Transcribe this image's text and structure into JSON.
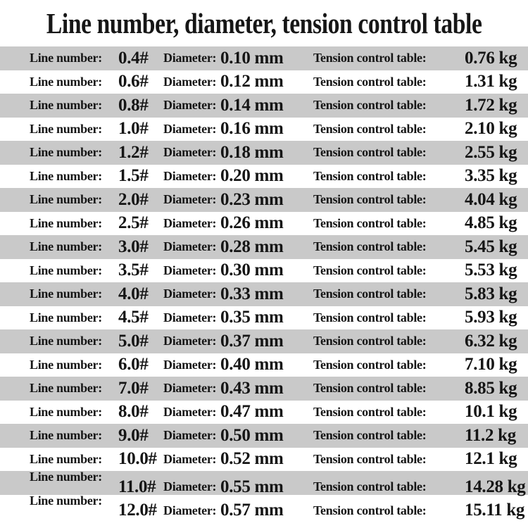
{
  "title": "Line number, diameter, tension control table",
  "labels": {
    "line": "Line number:",
    "diameter": "Diameter:",
    "tension": "Tension control table:"
  },
  "colors": {
    "row_alt": "#c9c9c9",
    "row_base": "#ffffff",
    "text": "#151515",
    "background": "#ffffff"
  },
  "chart_data": {
    "type": "table",
    "title": "Line number, diameter, tension control table",
    "columns": [
      "Line number",
      "Diameter",
      "Tension control table"
    ],
    "rows": [
      {
        "line": "0.4#",
        "diameter": "0.10 mm",
        "tension": "0.76 kg"
      },
      {
        "line": "0.6#",
        "diameter": "0.12 mm",
        "tension": "1.31 kg"
      },
      {
        "line": "0.8#",
        "diameter": "0.14 mm",
        "tension": "1.72 kg"
      },
      {
        "line": "1.0#",
        "diameter": "0.16 mm",
        "tension": "2.10 kg"
      },
      {
        "line": "1.2#",
        "diameter": "0.18 mm",
        "tension": "2.55 kg"
      },
      {
        "line": "1.5#",
        "diameter": "0.20 mm",
        "tension": "3.35 kg"
      },
      {
        "line": "2.0#",
        "diameter": "0.23 mm",
        "tension": "4.04 kg"
      },
      {
        "line": "2.5#",
        "diameter": "0.26 mm",
        "tension": "4.85 kg"
      },
      {
        "line": "3.0#",
        "diameter": "0.28 mm",
        "tension": "5.45 kg"
      },
      {
        "line": "3.5#",
        "diameter": "0.30 mm",
        "tension": "5.53 kg"
      },
      {
        "line": "4.0#",
        "diameter": "0.33 mm",
        "tension": "5.83 kg"
      },
      {
        "line": "4.5#",
        "diameter": "0.35 mm",
        "tension": "5.93 kg"
      },
      {
        "line": "5.0#",
        "diameter": "0.37 mm",
        "tension": "6.32 kg"
      },
      {
        "line": "6.0#",
        "diameter": "0.40 mm",
        "tension": "7.10 kg"
      },
      {
        "line": "7.0#",
        "diameter": "0.43 mm",
        "tension": "8.85 kg"
      },
      {
        "line": "8.0#",
        "diameter": "0.47 mm",
        "tension": "10.1 kg"
      },
      {
        "line": "9.0#",
        "diameter": "0.50 mm",
        "tension": "11.2 kg"
      },
      {
        "line": "10.0#",
        "diameter": "0.52 mm",
        "tension": "12.1 kg"
      },
      {
        "line": "11.0#",
        "diameter": "0.55 mm",
        "tension": "14.28 kg"
      },
      {
        "line": "12.0#",
        "diameter": "0.57 mm",
        "tension": "15.11 kg"
      }
    ]
  }
}
